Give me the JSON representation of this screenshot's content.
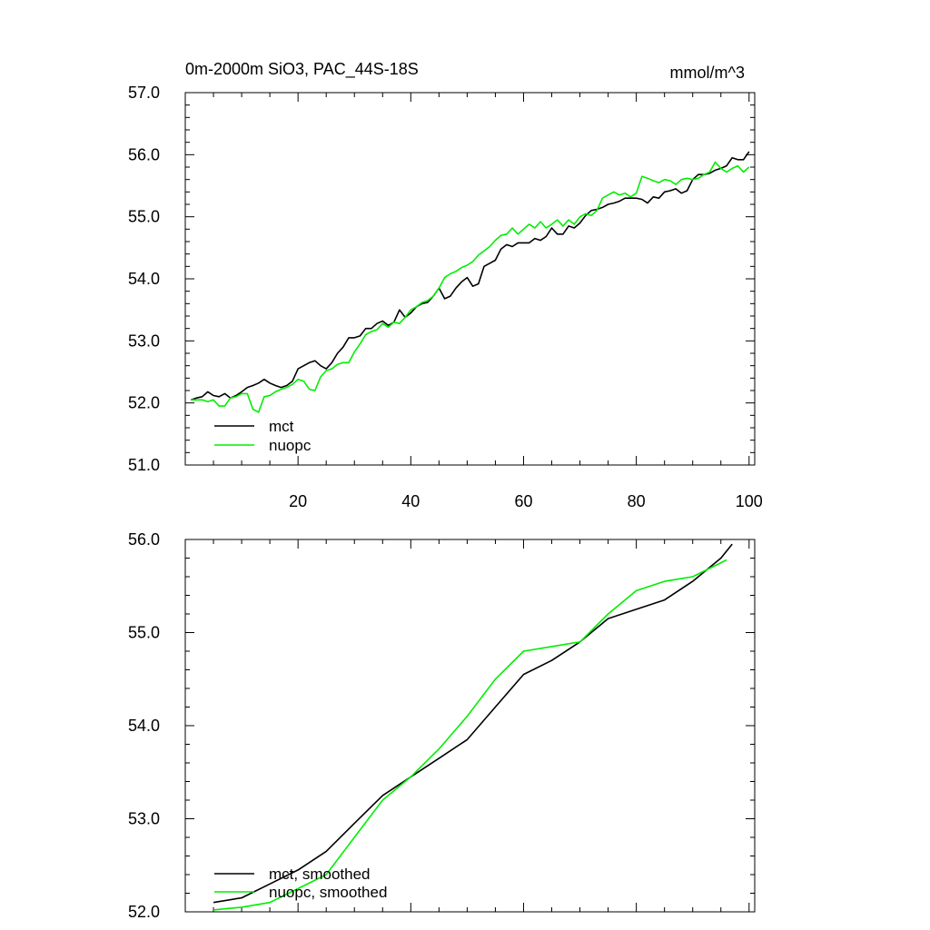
{
  "chart_data": [
    {
      "type": "line",
      "title": "0m-2000m SiO3, PAC_44S-18S",
      "units": "mmol/m^3",
      "xlim": [
        0,
        101
      ],
      "ylim": [
        51.0,
        57.0
      ],
      "x_ticks": [
        20,
        40,
        60,
        80,
        100
      ],
      "x_tick_labels": [
        "20",
        "40",
        "60",
        "80",
        "100"
      ],
      "y_ticks": [
        51.0,
        52.0,
        53.0,
        54.0,
        55.0,
        56.0,
        57.0
      ],
      "y_tick_labels": [
        "51.0",
        "52.0",
        "53.0",
        "54.0",
        "55.0",
        "56.0",
        "57.0"
      ],
      "grid": false,
      "legend_position": "bottom-left",
      "series": [
        {
          "name": "mct",
          "color": "#000000",
          "x": [
            1,
            2,
            3,
            4,
            5,
            6,
            7,
            8,
            9,
            10,
            11,
            12,
            13,
            14,
            15,
            16,
            17,
            18,
            19,
            20,
            21,
            22,
            23,
            24,
            25,
            26,
            27,
            28,
            29,
            30,
            31,
            32,
            33,
            34,
            35,
            36,
            37,
            38,
            39,
            40,
            41,
            42,
            43,
            44,
            45,
            46,
            47,
            48,
            49,
            50,
            51,
            52,
            53,
            54,
            55,
            56,
            57,
            58,
            59,
            60,
            61,
            62,
            63,
            64,
            65,
            66,
            67,
            68,
            69,
            70,
            71,
            72,
            73,
            74,
            75,
            76,
            77,
            78,
            79,
            80,
            81,
            82,
            83,
            84,
            85,
            86,
            87,
            88,
            89,
            90,
            91,
            92,
            93,
            94,
            95,
            96,
            97,
            98,
            99,
            100
          ],
          "y": [
            52.05,
            52.08,
            52.1,
            52.18,
            52.12,
            52.1,
            52.15,
            52.08,
            52.12,
            52.18,
            52.25,
            52.28,
            52.32,
            52.38,
            52.32,
            52.28,
            52.25,
            52.28,
            52.35,
            52.55,
            52.6,
            52.65,
            52.68,
            52.6,
            52.55,
            52.65,
            52.8,
            52.9,
            53.05,
            53.05,
            53.08,
            53.2,
            53.2,
            53.28,
            53.32,
            53.25,
            53.3,
            53.5,
            53.38,
            53.45,
            53.55,
            53.6,
            53.62,
            53.72,
            53.85,
            53.68,
            53.72,
            53.85,
            53.95,
            54.02,
            53.88,
            53.92,
            54.2,
            54.25,
            54.3,
            54.48,
            54.55,
            54.52,
            54.58,
            54.58,
            54.58,
            54.65,
            54.62,
            54.68,
            54.82,
            54.72,
            54.72,
            54.85,
            54.82,
            54.9,
            55.02,
            55.1,
            55.12,
            55.15,
            55.2,
            55.22,
            55.25,
            55.3,
            55.3,
            55.3,
            55.28,
            55.22,
            55.32,
            55.3,
            55.4,
            55.42,
            55.45,
            55.38,
            55.42,
            55.6,
            55.68,
            55.68,
            55.7,
            55.75,
            55.78,
            55.82,
            55.95,
            55.92,
            55.92,
            56.05
          ]
        },
        {
          "name": "nuopc",
          "color": "#00ee00",
          "x": [
            1,
            2,
            3,
            4,
            5,
            6,
            7,
            8,
            9,
            10,
            11,
            12,
            13,
            14,
            15,
            16,
            17,
            18,
            19,
            20,
            21,
            22,
            23,
            24,
            25,
            26,
            27,
            28,
            29,
            30,
            31,
            32,
            33,
            34,
            35,
            36,
            37,
            38,
            39,
            40,
            41,
            42,
            43,
            44,
            45,
            46,
            47,
            48,
            49,
            50,
            51,
            52,
            53,
            54,
            55,
            56,
            57,
            58,
            59,
            60,
            61,
            62,
            63,
            64,
            65,
            66,
            67,
            68,
            69,
            70,
            71,
            72,
            73,
            74,
            75,
            76,
            77,
            78,
            79,
            80,
            81,
            82,
            83,
            84,
            85,
            86,
            87,
            88,
            89,
            90,
            91,
            92,
            93,
            94,
            95,
            96,
            97,
            98,
            99,
            100
          ],
          "y": [
            52.05,
            52.05,
            52.05,
            52.02,
            52.05,
            51.95,
            51.95,
            52.08,
            52.1,
            52.15,
            52.15,
            51.9,
            51.85,
            52.1,
            52.12,
            52.18,
            52.22,
            52.25,
            52.3,
            52.38,
            52.35,
            52.22,
            52.2,
            52.42,
            52.52,
            52.55,
            52.62,
            52.65,
            52.65,
            52.82,
            52.95,
            53.1,
            53.15,
            53.18,
            53.28,
            53.22,
            53.3,
            53.28,
            53.38,
            53.5,
            53.55,
            53.62,
            53.65,
            53.72,
            53.85,
            54.02,
            54.08,
            54.12,
            54.18,
            54.22,
            54.28,
            54.38,
            54.45,
            54.52,
            54.62,
            54.7,
            54.72,
            54.82,
            54.72,
            54.8,
            54.88,
            54.82,
            54.92,
            54.82,
            54.88,
            54.95,
            54.85,
            54.95,
            54.88,
            55.0,
            55.05,
            55.02,
            55.1,
            55.3,
            55.35,
            55.4,
            55.35,
            55.38,
            55.32,
            55.38,
            55.65,
            55.62,
            55.58,
            55.55,
            55.6,
            55.58,
            55.52,
            55.6,
            55.62,
            55.6,
            55.62,
            55.68,
            55.72,
            55.88,
            55.78,
            55.72,
            55.78,
            55.82,
            55.72,
            55.8
          ]
        }
      ]
    },
    {
      "type": "line",
      "title": "",
      "xlim": [
        0,
        101
      ],
      "ylim": [
        52.0,
        56.0
      ],
      "x_ticks": [
        20,
        40,
        60,
        80,
        100
      ],
      "x_tick_labels": [],
      "y_ticks": [
        52.0,
        53.0,
        54.0,
        55.0,
        56.0
      ],
      "y_tick_labels": [
        "52.0",
        "53.0",
        "54.0",
        "55.0",
        "56.0"
      ],
      "grid": false,
      "legend_position": "bottom-left",
      "series": [
        {
          "name": "mct, smoothed",
          "color": "#000000",
          "x": [
            5,
            10,
            15,
            20,
            25,
            30,
            35,
            40,
            45,
            50,
            55,
            60,
            65,
            70,
            75,
            80,
            85,
            90,
            95,
            97
          ],
          "y": [
            52.1,
            52.15,
            52.3,
            52.45,
            52.65,
            52.95,
            53.25,
            53.45,
            53.65,
            53.85,
            54.2,
            54.55,
            54.7,
            54.9,
            55.15,
            55.25,
            55.35,
            55.55,
            55.8,
            55.95
          ]
        },
        {
          "name": "nuopc, smoothed",
          "color": "#00ee00",
          "x": [
            5,
            10,
            15,
            20,
            25,
            30,
            35,
            40,
            45,
            50,
            55,
            60,
            65,
            70,
            75,
            80,
            85,
            90,
            95,
            96
          ],
          "y": [
            52.02,
            52.05,
            52.1,
            52.25,
            52.4,
            52.8,
            53.2,
            53.45,
            53.75,
            54.1,
            54.5,
            54.8,
            54.85,
            54.9,
            55.2,
            55.45,
            55.55,
            55.6,
            55.75,
            55.78
          ]
        }
      ]
    }
  ]
}
